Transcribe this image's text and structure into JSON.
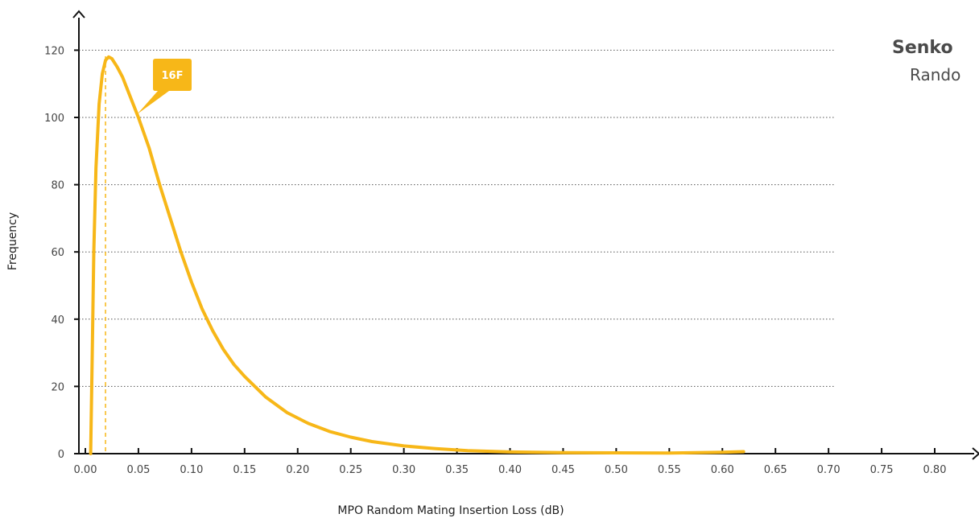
{
  "chart_data": {
    "type": "line",
    "title": "Senko",
    "subtitle": "Rando",
    "xlabel": "MPO Random Mating Insertion Loss (dB)",
    "ylabel": "Frequency",
    "xlim": [
      0.0,
      0.84
    ],
    "ylim": [
      0,
      125
    ],
    "x_ticks": [
      "0.00",
      "0.05",
      "0.10",
      "0.15",
      "0.20",
      "0.25",
      "0.30",
      "0.35",
      "0.40",
      "0.45",
      "0.50",
      "0.55",
      "0.60",
      "0.65",
      "0.70",
      "0.75",
      "0.80"
    ],
    "x_tick_values": [
      0.0,
      0.05,
      0.1,
      0.15,
      0.2,
      0.25,
      0.3,
      0.35,
      0.4,
      0.45,
      0.5,
      0.55,
      0.6,
      0.65,
      0.7,
      0.75,
      0.8
    ],
    "y_ticks": [
      0,
      20,
      40,
      60,
      80,
      100,
      120
    ],
    "grid": "horizontal-dotted",
    "series": [
      {
        "name": "16F",
        "color": "#F7B718",
        "x": [
          0.005,
          0.0065,
          0.008,
          0.01,
          0.013,
          0.016,
          0.019,
          0.022,
          0.025,
          0.03,
          0.035,
          0.04,
          0.05,
          0.06,
          0.07,
          0.08,
          0.09,
          0.1,
          0.11,
          0.12,
          0.13,
          0.14,
          0.15,
          0.17,
          0.19,
          0.21,
          0.23,
          0.25,
          0.27,
          0.3,
          0.33,
          0.36,
          0.4,
          0.45,
          0.5,
          0.55,
          0.6,
          0.62
        ],
        "y": [
          0,
          30,
          60,
          85,
          104,
          113,
          117,
          118,
          117.5,
          115,
          112,
          108,
          100,
          91,
          80,
          70,
          60,
          51,
          43,
          36.5,
          31,
          26.5,
          23,
          16.8,
          12.2,
          9,
          6.6,
          4.9,
          3.6,
          2.3,
          1.5,
          0.9,
          0.5,
          0.3,
          0.25,
          0.2,
          0.4,
          0.6
        ]
      }
    ],
    "annotations": [
      {
        "type": "vline",
        "x": 0.019,
        "style": "dashed",
        "color": "#F7B718"
      },
      {
        "type": "callout",
        "text": "16F",
        "x": 0.049,
        "y": 101,
        "color": "#F7B718"
      }
    ]
  }
}
